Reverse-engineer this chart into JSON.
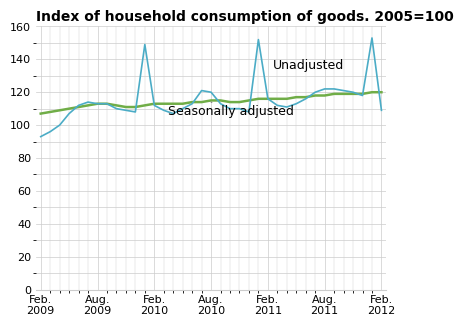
{
  "title": "Index of household consumption of goods. 2005=100",
  "ylim": [
    0,
    160
  ],
  "yticks": [
    0,
    20,
    40,
    60,
    80,
    100,
    120,
    140,
    160
  ],
  "xtick_labels": [
    "Feb.\n2009",
    "Aug.\n2009",
    "Feb.\n2010",
    "Aug.\n2010",
    "Feb.\n2011",
    "Aug.\n2011",
    "Feb.\n2012"
  ],
  "xtick_pos": [
    0,
    6,
    12,
    18,
    24,
    30,
    36
  ],
  "unadjusted_color": "#4BACC6",
  "seasonally_color": "#70AD47",
  "background_color": "#FFFFFF",
  "grid_color": "#CCCCCC",
  "unadjusted_label": "Unadjusted",
  "seasonally_label": "Seasonally adjusted",
  "unadjusted": [
    93,
    96,
    100,
    107,
    112,
    114,
    113,
    113,
    110,
    109,
    108,
    149,
    112,
    109,
    107,
    110,
    113,
    121,
    120,
    113,
    110,
    110,
    108,
    152,
    116,
    112,
    111,
    113,
    116,
    120,
    122,
    122,
    121,
    120,
    118,
    153,
    109
  ],
  "seasonally": [
    107,
    108,
    109,
    110,
    111,
    112,
    113,
    113,
    112,
    111,
    111,
    112,
    113,
    113,
    113,
    113,
    114,
    114,
    115,
    115,
    114,
    114,
    115,
    116,
    116,
    116,
    116,
    117,
    117,
    118,
    118,
    119,
    119,
    119,
    119,
    120,
    120
  ],
  "n_points": 37,
  "title_fontsize": 10,
  "tick_fontsize": 8,
  "annotation_fontsize": 9
}
